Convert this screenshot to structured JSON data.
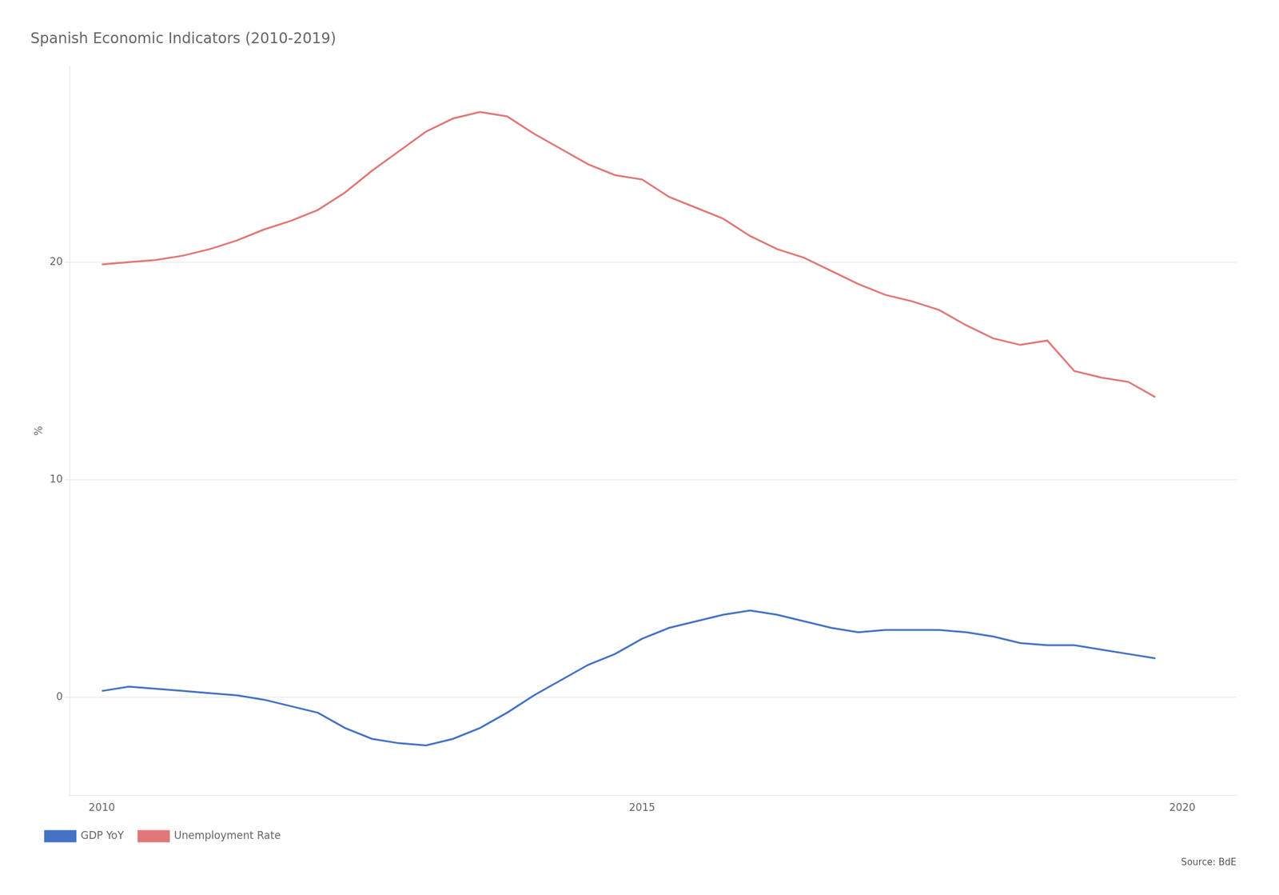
{
  "chart_data": {
    "type": "line",
    "title": "Spanish Economic Indicators (2010-2019)",
    "y_label": "%",
    "annotations": [
      "Source: BdE"
    ],
    "x": [
      2010.0,
      2010.25,
      2010.5,
      2010.75,
      2011.0,
      2011.25,
      2011.5,
      2011.75,
      2012.0,
      2012.25,
      2012.5,
      2012.75,
      2013.0,
      2013.25,
      2013.5,
      2013.75,
      2014.0,
      2014.25,
      2014.5,
      2014.75,
      2015.0,
      2015.25,
      2015.5,
      2015.75,
      2016.0,
      2016.25,
      2016.5,
      2016.75,
      2017.0,
      2017.25,
      2017.5,
      2017.75,
      2018.0,
      2018.25,
      2018.5,
      2018.75,
      2019.0,
      2019.25,
      2019.5,
      2019.75
    ],
    "series": [
      {
        "name": "GDP YoY",
        "color": "#4472c4",
        "values": [
          0.3,
          0.5,
          0.4,
          0.3,
          0.2,
          0.1,
          -0.1,
          -0.4,
          -0.7,
          -1.4,
          -1.9,
          -2.1,
          -2.2,
          -1.9,
          -1.4,
          -0.7,
          0.1,
          0.8,
          1.5,
          2.0,
          2.7,
          3.2,
          3.5,
          3.8,
          4.0,
          3.8,
          3.5,
          3.2,
          3.0,
          3.1,
          3.1,
          3.1,
          3.0,
          2.8,
          2.5,
          2.4,
          2.4,
          2.2,
          2.0,
          1.8
        ]
      },
      {
        "name": "Unemployment Rate",
        "color": "#e07878",
        "values": [
          19.9,
          20.0,
          20.1,
          20.3,
          20.6,
          21.0,
          21.5,
          21.9,
          22.4,
          23.2,
          24.2,
          25.1,
          26.0,
          26.6,
          26.9,
          26.7,
          25.9,
          25.2,
          24.5,
          24.0,
          23.8,
          23.0,
          22.5,
          22.0,
          21.2,
          20.6,
          20.2,
          19.6,
          19.0,
          18.5,
          18.2,
          17.8,
          17.1,
          16.5,
          16.2,
          16.4,
          15.0,
          14.7,
          14.5,
          13.8
        ]
      }
    ],
    "xlim": [
      2009.7,
      2020.5
    ],
    "xticks": [
      2010,
      2015,
      2020
    ],
    "ylim": [
      -4.5,
      29
    ],
    "yticks": [
      0,
      10,
      20
    ],
    "grid": "y",
    "legend": "bottom"
  }
}
